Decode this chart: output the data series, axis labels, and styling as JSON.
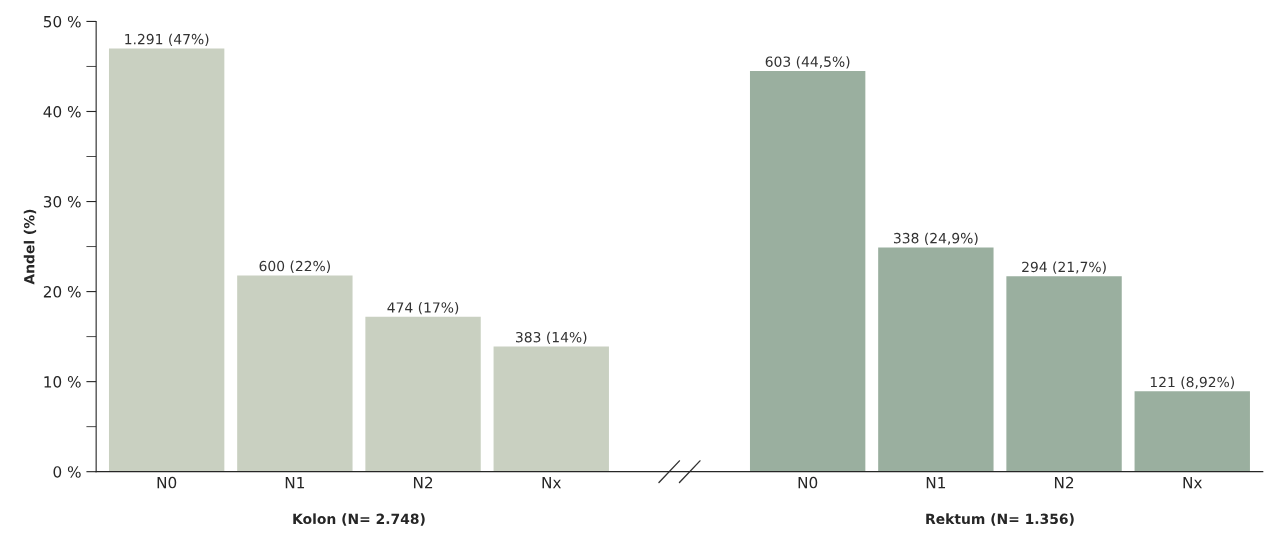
{
  "chart_data": {
    "type": "bar",
    "ylabel": "Andel (%)",
    "categories": [
      "N0",
      "N1",
      "N2",
      "Nx",
      null,
      "N0",
      "N1",
      "N2",
      "Nx"
    ],
    "values": [
      47.0,
      21.8,
      17.2,
      13.9,
      null,
      44.5,
      24.9,
      21.7,
      8.92
    ],
    "colors": [
      "#c9d0c1",
      "#c9d0c1",
      "#c9d0c1",
      "#c9d0c1",
      null,
      "#9aaf9f",
      "#9aaf9f",
      "#9aaf9f",
      "#9aaf9f"
    ],
    "value_labels": [
      "1.291 (47%)",
      "600 (22%)",
      "474 (17%)",
      "383 (14%)",
      null,
      "603 (44,5%)",
      "338 (24,9%)",
      "294 (21,7%)",
      "121 (8,92%)"
    ],
    "annotations": [
      "Kolon (N= 2.748)",
      "Rektum (N= 1.356)"
    ],
    "ylim": [
      0,
      50
    ],
    "yticks": [
      {
        "value": 0,
        "label": "0 %"
      },
      {
        "value": 5,
        "label": null
      },
      {
        "value": 10,
        "label": "10 %"
      },
      {
        "value": 15,
        "label": null
      },
      {
        "value": 20,
        "label": "20 %"
      },
      {
        "value": 25,
        "label": null
      },
      {
        "value": 30,
        "label": "30 %"
      },
      {
        "value": 35,
        "label": null
      },
      {
        "value": 40,
        "label": "40 %"
      },
      {
        "value": 45,
        "label": null
      },
      {
        "value": 50,
        "label": "50 %"
      }
    ],
    "grid": false,
    "legend": false
  }
}
